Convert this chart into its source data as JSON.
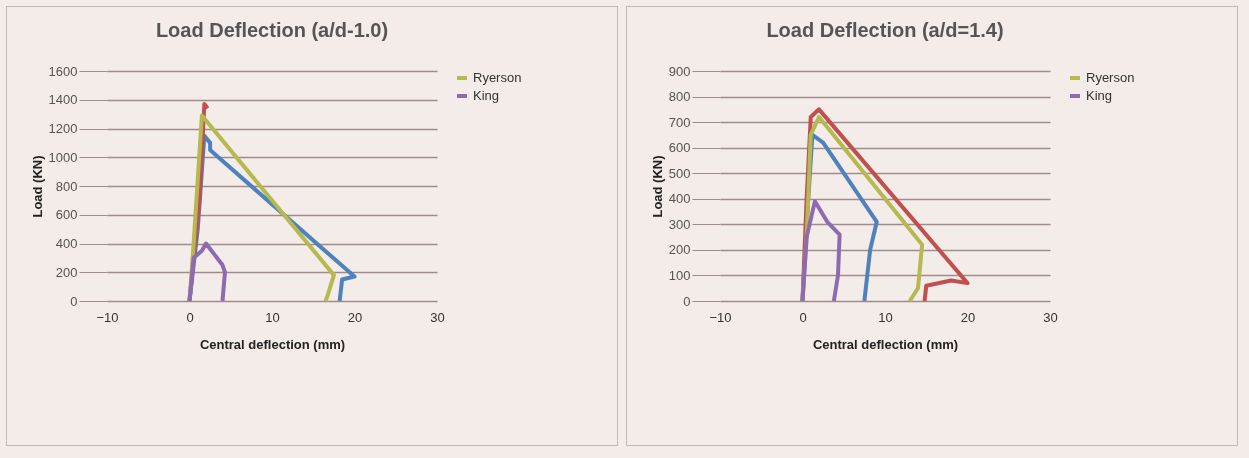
{
  "chart_data": [
    {
      "type": "line",
      "title": "Load Deflection (a/d-1.0)",
      "xlabel": "Central deflection (mm)",
      "ylabel": "Load (KN)",
      "xlim": [
        -10,
        30
      ],
      "xticks": [
        -10,
        0,
        10,
        20,
        30
      ],
      "ylim": [
        0,
        1600
      ],
      "yticks": [
        0,
        200,
        400,
        600,
        800,
        1000,
        1200,
        1400,
        1600
      ],
      "grid": "y",
      "legend": "right",
      "marker": "none",
      "line_style": "solid",
      "series": [
        {
          "color": "#4f81bd",
          "x": [
            0,
            1,
            1.8,
            2.5,
            2.5,
            20,
            18.5,
            18.2
          ],
          "values": [
            0,
            500,
            1150,
            1100,
            1050,
            170,
            150,
            0
          ]
        },
        {
          "color": "#c0504d",
          "x": [
            0,
            1.2,
            1.8,
            2.2
          ],
          "values": [
            0,
            700,
            1370,
            1340
          ]
        },
        {
          "name": "Ryerson",
          "color": "#b5b94f",
          "x": [
            0,
            0.5,
            1.5,
            17.5,
            16.8,
            16.5
          ],
          "values": [
            0,
            400,
            1290,
            180,
            50,
            0
          ]
        },
        {
          "name": "King",
          "color": "#8c6bb1",
          "x": [
            0,
            0.5,
            1.5,
            2,
            4,
            4.3,
            4
          ],
          "values": [
            0,
            300,
            350,
            400,
            250,
            200,
            0
          ]
        }
      ]
    },
    {
      "type": "line",
      "title": "Load Deflection (a/d=1.4)",
      "xlabel": "Central deflection (mm)",
      "ylabel": "Load (KN)",
      "xlim": [
        -10,
        30
      ],
      "xticks": [
        -10,
        0,
        10,
        20,
        30
      ],
      "ylim": [
        0,
        900
      ],
      "yticks": [
        0,
        100,
        200,
        300,
        400,
        500,
        600,
        700,
        800,
        900
      ],
      "grid": "y",
      "legend": "right",
      "marker": "none",
      "line_style": "solid",
      "series": [
        {
          "color": "#4f81bd",
          "x": [
            0,
            0.5,
            1.2,
            2.5,
            9,
            8.2,
            7.5
          ],
          "values": [
            0,
            300,
            650,
            620,
            310,
            200,
            0
          ]
        },
        {
          "color": "#c0504d",
          "x": [
            0,
            0.5,
            1,
            2,
            20,
            18,
            15,
            14.8
          ],
          "values": [
            0,
            400,
            720,
            750,
            70,
            80,
            60,
            0
          ]
        },
        {
          "name": "Ryerson",
          "color": "#b5b94f",
          "x": [
            0,
            0.5,
            1,
            2,
            14.5,
            14,
            13
          ],
          "values": [
            0,
            250,
            650,
            720,
            220,
            50,
            0
          ]
        },
        {
          "name": "King",
          "color": "#8c6bb1",
          "x": [
            0,
            0.5,
            1.5,
            3,
            4.5,
            4.3,
            3.8
          ],
          "values": [
            0,
            250,
            390,
            310,
            260,
            100,
            0
          ]
        }
      ]
    }
  ]
}
